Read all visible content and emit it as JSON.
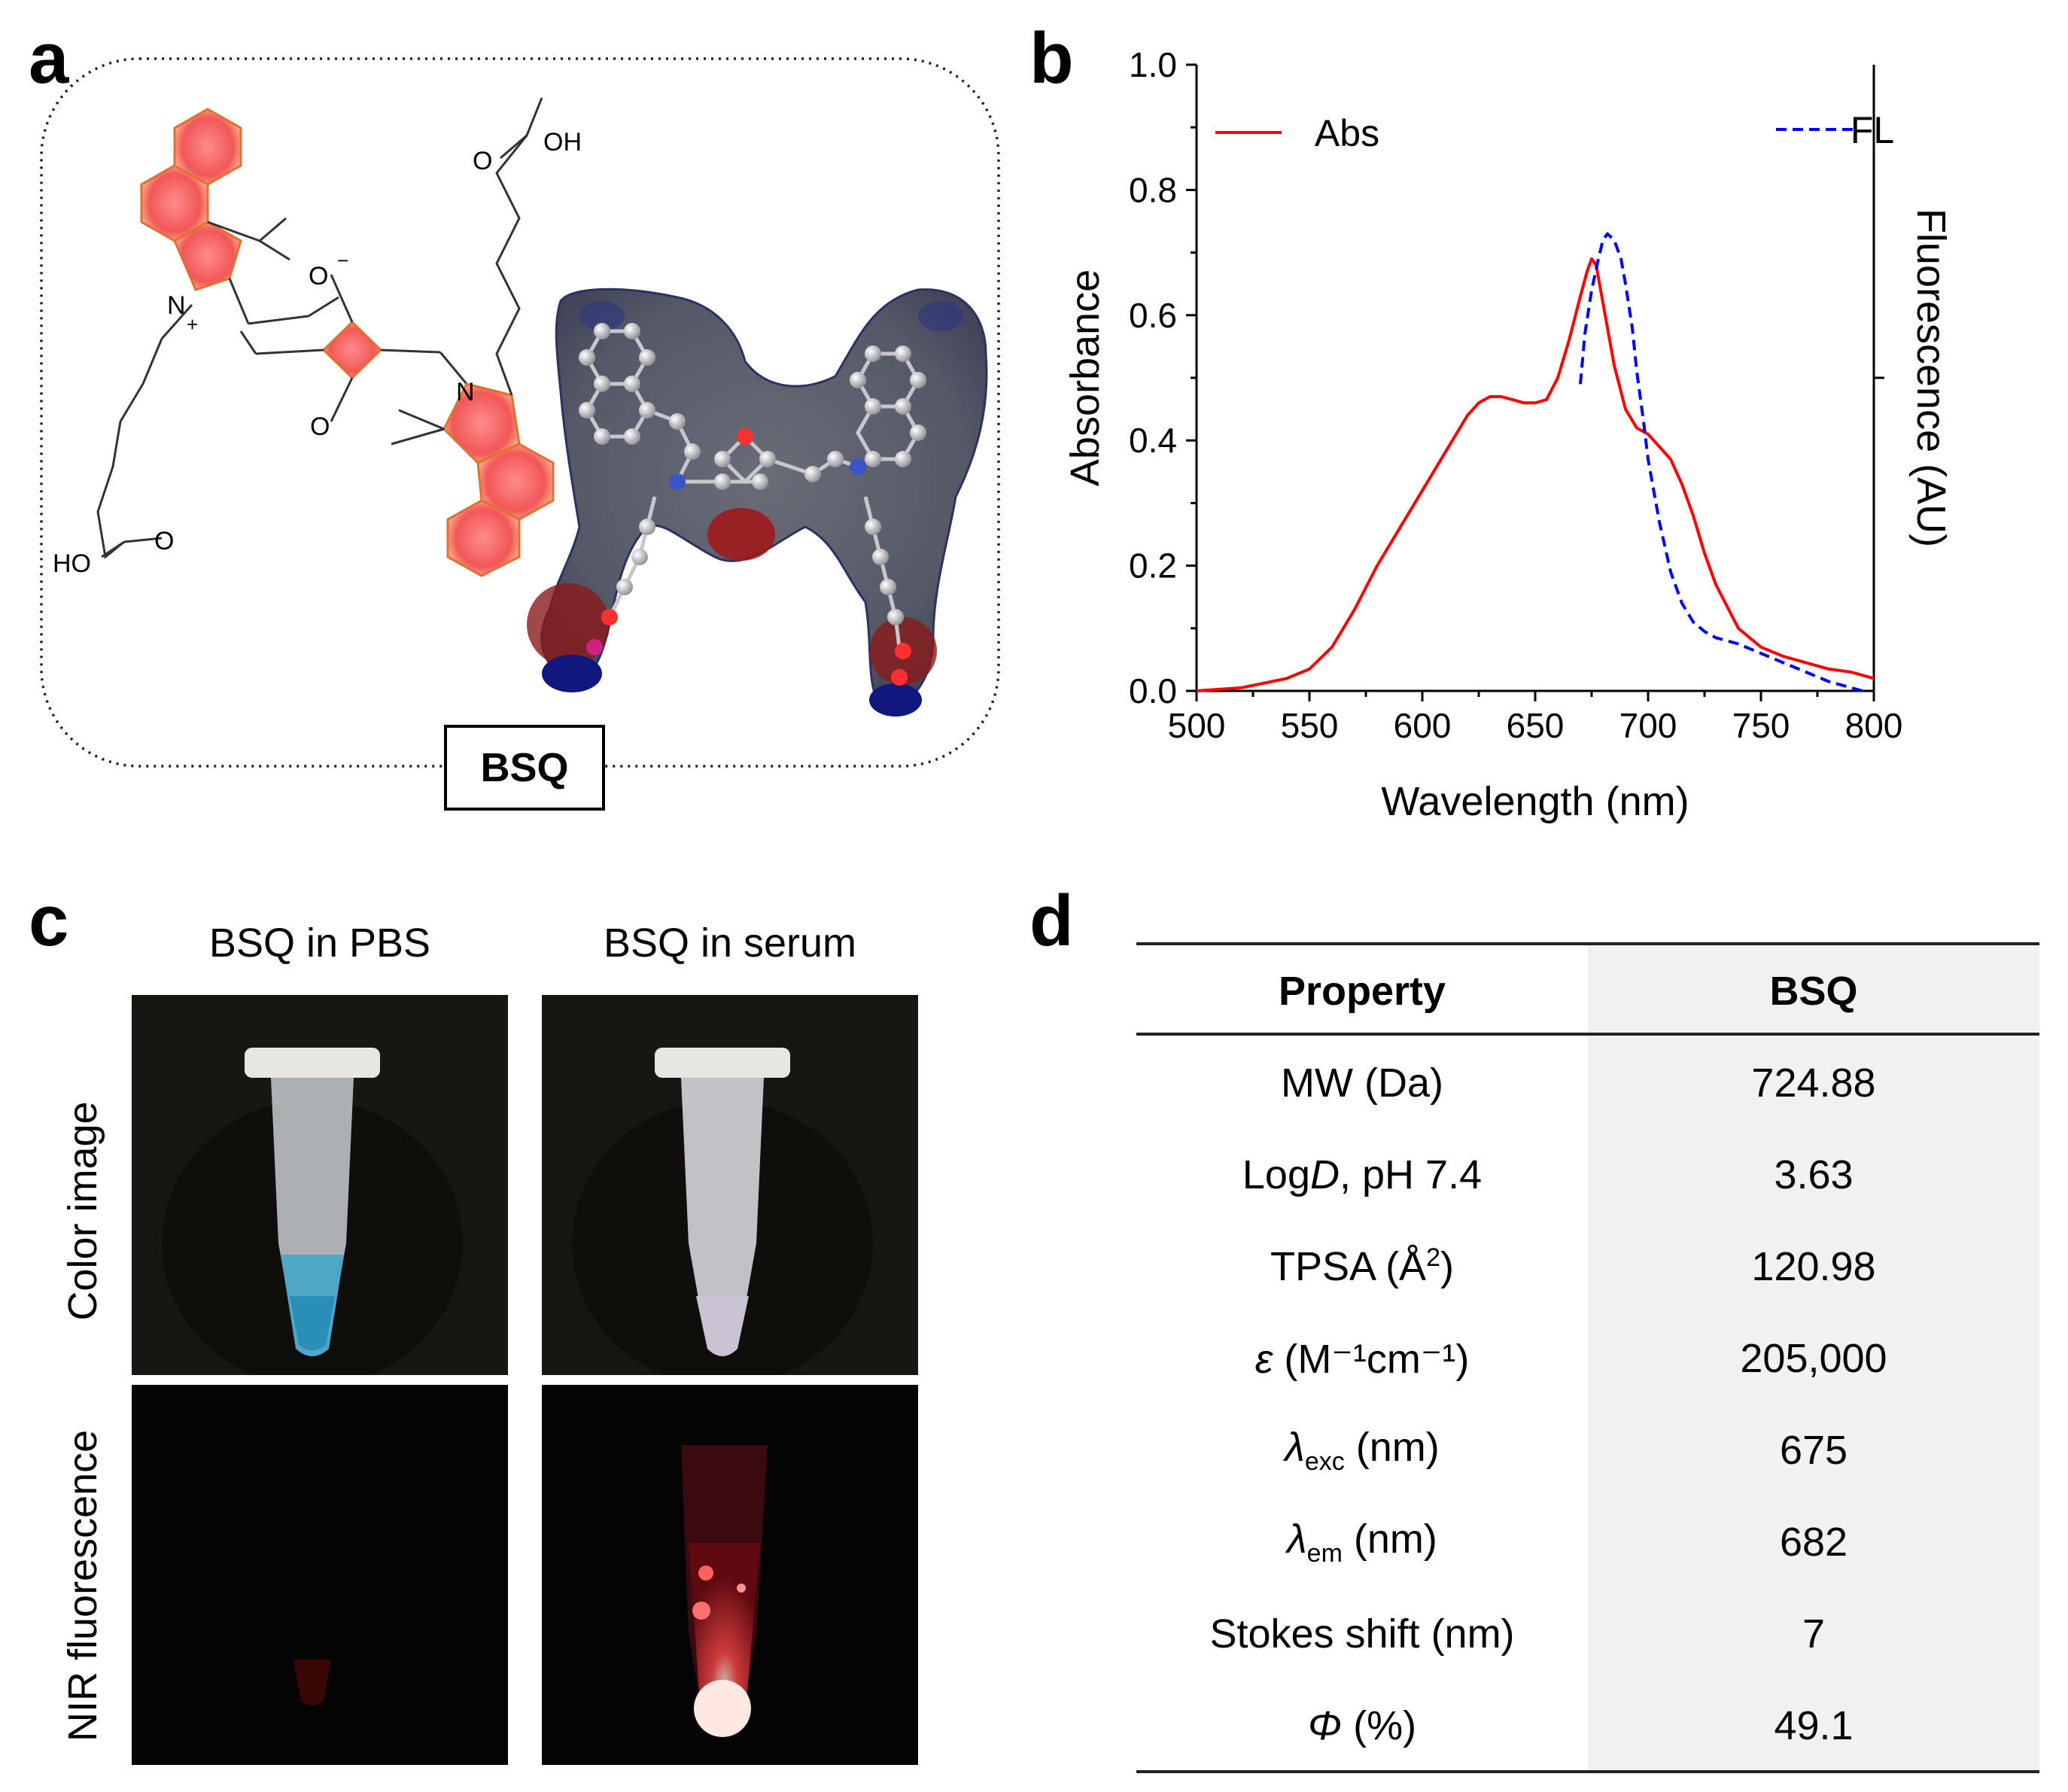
{
  "panels": {
    "a": "a",
    "b": "b",
    "c": "c",
    "d": "d"
  },
  "panel_a": {
    "compound_label": "BSQ",
    "atoms": {
      "n_plus": "N",
      "plus": "+",
      "o_minus": "O",
      "minus": "−",
      "o_ketone": "O",
      "n2": "N",
      "oh_top_o": "O",
      "oh_top": "OH",
      "ho_bottom": "HO",
      "o_bottom": "O"
    }
  },
  "chart_data": {
    "type": "line",
    "xlabel": "Wavelength (nm)",
    "ylabel": "Absorbance",
    "y2label": "Fluorescence (AU)",
    "xlim": [
      500,
      800
    ],
    "ylim": [
      0,
      1.0
    ],
    "x_ticks": [
      "500",
      "550",
      "600",
      "650",
      "700",
      "750",
      "800"
    ],
    "y_ticks": [
      "0.0",
      "0.2",
      "0.4",
      "0.6",
      "0.8",
      "1.0"
    ],
    "legend_placement": "top",
    "series": [
      {
        "name": "Abs",
        "color": "#ff0000",
        "style": "solid",
        "x": [
          500,
          520,
          540,
          550,
          560,
          570,
          580,
          590,
          600,
          610,
          615,
          620,
          625,
          630,
          635,
          640,
          645,
          650,
          655,
          660,
          665,
          670,
          673,
          675,
          677,
          680,
          685,
          690,
          695,
          700,
          705,
          710,
          715,
          720,
          725,
          730,
          740,
          750,
          760,
          770,
          780,
          790,
          800
        ],
        "y": [
          0.0,
          0.005,
          0.02,
          0.035,
          0.07,
          0.13,
          0.2,
          0.26,
          0.32,
          0.38,
          0.41,
          0.44,
          0.46,
          0.47,
          0.47,
          0.465,
          0.46,
          0.46,
          0.465,
          0.5,
          0.56,
          0.63,
          0.67,
          0.69,
          0.68,
          0.62,
          0.52,
          0.45,
          0.42,
          0.41,
          0.39,
          0.37,
          0.33,
          0.28,
          0.22,
          0.17,
          0.1,
          0.07,
          0.055,
          0.045,
          0.035,
          0.03,
          0.02
        ]
      },
      {
        "name": "FL",
        "color": "#0000ff",
        "style": "dashed",
        "x": [
          670,
          672,
          675,
          678,
          680,
          682,
          685,
          688,
          690,
          693,
          695,
          698,
          700,
          705,
          710,
          715,
          720,
          725,
          730,
          740,
          750,
          760,
          770,
          780,
          790,
          795
        ],
        "y": [
          0.49,
          0.57,
          0.64,
          0.69,
          0.72,
          0.73,
          0.72,
          0.69,
          0.65,
          0.58,
          0.51,
          0.43,
          0.37,
          0.27,
          0.19,
          0.14,
          0.11,
          0.095,
          0.085,
          0.075,
          0.06,
          0.045,
          0.03,
          0.015,
          0.005,
          0.0
        ]
      }
    ]
  },
  "panel_c": {
    "col1": "BSQ in PBS",
    "col2": "BSQ in serum",
    "row1": "Color image",
    "row2": "NIR fluorescence"
  },
  "panel_d": {
    "headers": [
      "Property",
      "BSQ"
    ],
    "rows": [
      {
        "pre": "MW (Da)",
        "em": "",
        "sub": "",
        "sup": "",
        "post": "",
        "value": "724.88"
      },
      {
        "pre": "Log",
        "em": "D",
        "sub": "",
        "sup": "",
        "post": ", pH 7.4",
        "value": "3.63"
      },
      {
        "pre": "TPSA (Å",
        "em": "",
        "sub": "",
        "sup": "2",
        "post": ")",
        "value": "120.98"
      },
      {
        "pre": "",
        "em": "ε",
        "sub": "",
        "sup": "",
        "post": " (M⁻¹cm⁻¹)",
        "value": "205,000"
      },
      {
        "pre": "",
        "em": "λ",
        "sub": "exc",
        "sup": "",
        "post": " (nm)",
        "value": "675"
      },
      {
        "pre": "",
        "em": "λ",
        "sub": "em",
        "sup": "",
        "post": " (nm)",
        "value": "682"
      },
      {
        "pre": "Stokes shift (nm)",
        "em": "",
        "sub": "",
        "sup": "",
        "post": "",
        "value": "7"
      },
      {
        "pre": "",
        "em": "Φ",
        "sub": "",
        "sup": "",
        "post": " (%)",
        "value": "49.1"
      }
    ]
  }
}
